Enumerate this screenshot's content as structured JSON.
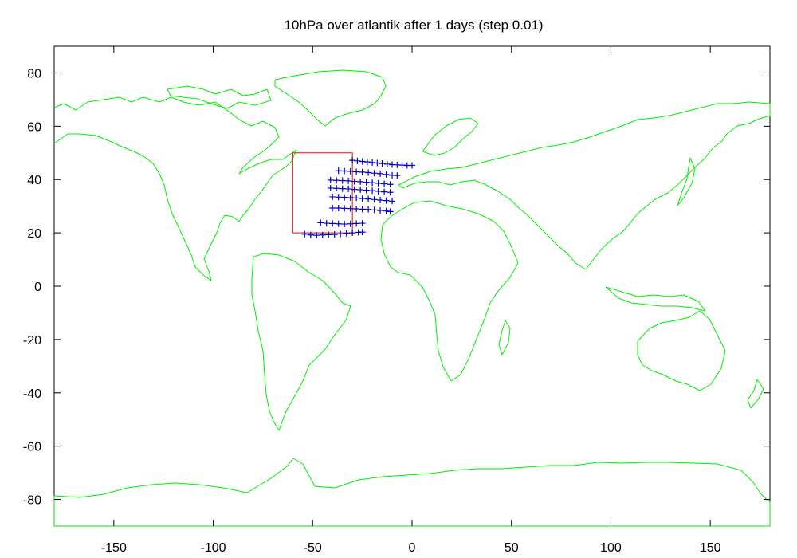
{
  "chart_data": {
    "type": "scatter",
    "title": "10hPa over atlantik after 1 days (step 0.01)",
    "xlabel": "",
    "ylabel": "",
    "xlim": [
      -180,
      180
    ],
    "ylim": [
      -90,
      90
    ],
    "xticks": [
      -150,
      -100,
      -50,
      0,
      50,
      100,
      150
    ],
    "yticks": [
      -80,
      -60,
      -40,
      -20,
      0,
      20,
      40,
      60,
      80
    ],
    "grid": false,
    "colors": {
      "coastline": "#00ee00",
      "region_box": "#ff0000",
      "points": "#0000cc"
    },
    "region_box": {
      "lon": [
        -60,
        -30
      ],
      "lat": [
        20,
        50
      ]
    },
    "series": [
      {
        "marker": "plus",
        "points": [
          [
            -30,
            47.2
          ],
          [
            -27.5,
            47.0
          ],
          [
            -25,
            46.8
          ],
          [
            -22.5,
            46.6
          ],
          [
            -20,
            46.4
          ],
          [
            -17.5,
            46.2
          ],
          [
            -15,
            46.0
          ],
          [
            -12.5,
            45.8
          ],
          [
            -10,
            45.6
          ],
          [
            -7.5,
            45.5
          ],
          [
            -5,
            45.4
          ],
          [
            -2.5,
            45.3
          ],
          [
            0,
            45.3
          ],
          [
            -37,
            43.3
          ],
          [
            -34,
            43.2
          ],
          [
            -31,
            43.1
          ],
          [
            -28,
            42.9
          ],
          [
            -25,
            42.8
          ],
          [
            -22,
            42.6
          ],
          [
            -19,
            42.4
          ],
          [
            -16,
            42.2
          ],
          [
            -13,
            41.9
          ],
          [
            -10,
            41.6
          ],
          [
            -7.5,
            41.5
          ],
          [
            -41,
            39.8
          ],
          [
            -38,
            39.7
          ],
          [
            -35,
            39.6
          ],
          [
            -32,
            39.5
          ],
          [
            -29,
            39.3
          ],
          [
            -26,
            39.2
          ],
          [
            -23,
            39.0
          ],
          [
            -20,
            38.8
          ],
          [
            -17,
            38.6
          ],
          [
            -14,
            38.4
          ],
          [
            -11,
            38.2
          ],
          [
            -41,
            36.8
          ],
          [
            -38,
            36.7
          ],
          [
            -35,
            36.6
          ],
          [
            -32,
            36.5
          ],
          [
            -29,
            36.3
          ],
          [
            -26,
            36.2
          ],
          [
            -23,
            36.0
          ],
          [
            -20,
            35.8
          ],
          [
            -17,
            35.6
          ],
          [
            -14,
            35.4
          ],
          [
            -11,
            35.2
          ],
          [
            -40,
            33.5
          ],
          [
            -37,
            33.4
          ],
          [
            -34,
            33.3
          ],
          [
            -31,
            33.2
          ],
          [
            -28,
            33.1
          ],
          [
            -25,
            32.9
          ],
          [
            -22,
            32.7
          ],
          [
            -19,
            32.5
          ],
          [
            -16,
            32.3
          ],
          [
            -13,
            32.1
          ],
          [
            -10,
            31.9
          ],
          [
            -40,
            29.3
          ],
          [
            -37,
            29.3
          ],
          [
            -34,
            29.2
          ],
          [
            -31,
            29.1
          ],
          [
            -28,
            29.0
          ],
          [
            -25,
            28.9
          ],
          [
            -22,
            28.8
          ],
          [
            -19,
            28.6
          ],
          [
            -16,
            28.4
          ],
          [
            -13,
            28.2
          ],
          [
            -11,
            28.0
          ],
          [
            -46,
            23.8
          ],
          [
            -43,
            23.6
          ],
          [
            -40,
            23.5
          ],
          [
            -37,
            23.4
          ],
          [
            -34,
            23.3
          ],
          [
            -31,
            23.4
          ],
          [
            -28,
            23.5
          ],
          [
            -25,
            23.6
          ],
          [
            -54,
            19.5
          ],
          [
            -51,
            19.2
          ],
          [
            -48,
            19.1
          ],
          [
            -45,
            19.2
          ],
          [
            -42,
            19.3
          ],
          [
            -39,
            19.4
          ],
          [
            -36,
            19.6
          ],
          [
            -33,
            19.8
          ],
          [
            -30,
            20.0
          ],
          [
            -27,
            20.2
          ],
          [
            -25,
            20.3
          ]
        ]
      }
    ]
  }
}
